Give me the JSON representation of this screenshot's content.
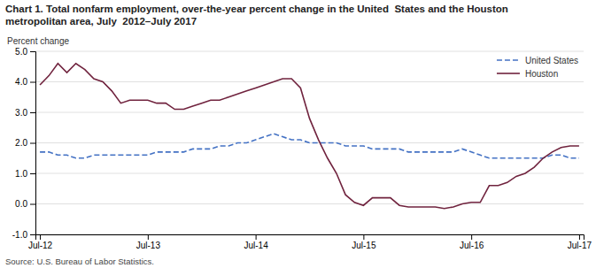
{
  "chart_data": {
    "type": "line",
    "title": [
      "Chart 1. Total nonfarm employment, over-the-year percent change in the United  States and the Houston",
      "metropolitan area, July  2012–July 2017"
    ],
    "ylabel": "Percent change",
    "source": "Source: U.S. Bureau of Labor Statistics.",
    "categories": [
      "Jul-12",
      null,
      null,
      null,
      null,
      null,
      null,
      null,
      null,
      null,
      null,
      null,
      "Jul-13",
      null,
      null,
      null,
      null,
      null,
      null,
      null,
      null,
      null,
      null,
      null,
      "Jul-14",
      null,
      null,
      null,
      null,
      null,
      null,
      null,
      null,
      null,
      null,
      null,
      "Jul-15",
      null,
      null,
      null,
      null,
      null,
      null,
      null,
      null,
      null,
      null,
      null,
      "Jul-16",
      null,
      null,
      null,
      null,
      null,
      null,
      null,
      null,
      null,
      null,
      null,
      "Jul-17"
    ],
    "ylim": [
      -1.0,
      5.0
    ],
    "yticks": [
      {
        "value": -1.0,
        "label": "-1.0"
      },
      {
        "value": 0.0,
        "label": "0.0"
      },
      {
        "value": 1.0,
        "label": "1.0"
      },
      {
        "value": 2.0,
        "label": "2.0"
      },
      {
        "value": 3.0,
        "label": "3.0"
      },
      {
        "value": 4.0,
        "label": "4.0"
      },
      {
        "value": 5.0,
        "label": "5.0"
      }
    ],
    "grid": true,
    "legend": "upper right",
    "series": [
      {
        "name": "United States",
        "color": "#4472C4",
        "line_style": "dashed",
        "values": [
          1.7,
          1.7,
          1.6,
          1.6,
          1.5,
          1.5,
          1.6,
          1.6,
          1.6,
          1.6,
          1.6,
          1.6,
          1.6,
          1.7,
          1.7,
          1.7,
          1.7,
          1.8,
          1.8,
          1.8,
          1.9,
          1.9,
          2.0,
          2.0,
          2.1,
          2.2,
          2.3,
          2.2,
          2.1,
          2.1,
          2.0,
          2.0,
          2.0,
          2.0,
          1.9,
          1.9,
          1.9,
          1.8,
          1.8,
          1.8,
          1.8,
          1.7,
          1.7,
          1.7,
          1.7,
          1.7,
          1.7,
          1.8,
          1.7,
          1.6,
          1.5,
          1.5,
          1.5,
          1.5,
          1.5,
          1.5,
          1.5,
          1.6,
          1.6,
          1.5,
          1.5
        ]
      },
      {
        "name": "Houston",
        "color": "#70233E",
        "line_style": "solid",
        "values": [
          3.9,
          4.2,
          4.6,
          4.3,
          4.6,
          4.4,
          4.1,
          4.0,
          3.7,
          3.3,
          3.4,
          3.4,
          3.4,
          3.3,
          3.3,
          3.1,
          3.1,
          3.2,
          3.3,
          3.4,
          3.4,
          3.5,
          3.6,
          3.7,
          3.8,
          3.9,
          4.0,
          4.1,
          4.1,
          3.8,
          2.8,
          2.1,
          1.5,
          1.0,
          0.3,
          0.05,
          -0.05,
          0.2,
          0.2,
          0.2,
          -0.05,
          -0.1,
          -0.1,
          -0.1,
          -0.1,
          -0.15,
          -0.1,
          0.0,
          0.05,
          0.05,
          0.6,
          0.6,
          0.7,
          0.9,
          1.0,
          1.2,
          1.5,
          1.7,
          1.85,
          1.9,
          1.9
        ]
      }
    ]
  }
}
